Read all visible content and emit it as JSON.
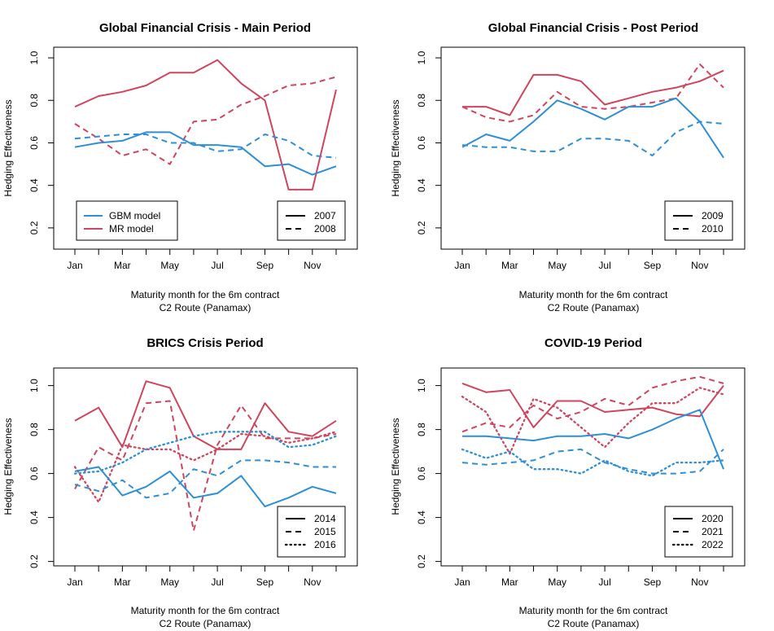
{
  "colors": {
    "gbm": "#2E8FD6",
    "mr": "#D0445E"
  },
  "chart_data": [
    {
      "type": "line",
      "title": "Global Financial Crisis - Main Period",
      "xlabel": "Maturity month for the 6m contract",
      "xlabel2": "C2 Route (Panamax)",
      "ylabel": "Hedging Effectiveness",
      "ylim": [
        0.1,
        1.05
      ],
      "yticks": [
        "0.2",
        "0.4",
        "0.6",
        "0.8",
        "1.0"
      ],
      "xtick_labels": [
        "Jan",
        "Mar",
        "May",
        "Jul",
        "Sep",
        "Nov"
      ],
      "model_legend": {
        "placement": "bottom-left",
        "entries": [
          "GBM model",
          "MR model"
        ]
      },
      "year_legend": [
        "2007",
        "2008"
      ],
      "series": [
        {
          "name": "MR 2007",
          "model": "mr",
          "style": "solid",
          "values": [
            0.77,
            0.82,
            0.84,
            0.87,
            0.93,
            0.93,
            0.99,
            0.88,
            0.8,
            0.38,
            0.38,
            0.85
          ]
        },
        {
          "name": "MR 2008",
          "model": "mr",
          "style": "dashed",
          "values": [
            0.69,
            0.62,
            0.54,
            0.57,
            0.5,
            0.7,
            0.71,
            0.78,
            0.82,
            0.87,
            0.88,
            0.91
          ]
        },
        {
          "name": "GBM 2007",
          "model": "gbm",
          "style": "solid",
          "values": [
            0.58,
            0.6,
            0.61,
            0.65,
            0.65,
            0.59,
            0.59,
            0.58,
            0.49,
            0.5,
            0.45,
            0.49
          ]
        },
        {
          "name": "GBM 2008",
          "model": "gbm",
          "style": "dashed",
          "values": [
            0.62,
            0.63,
            0.64,
            0.64,
            0.6,
            0.6,
            0.56,
            0.57,
            0.64,
            0.61,
            0.54,
            0.53
          ]
        }
      ]
    },
    {
      "type": "line",
      "title": "Global Financial Crisis - Post Period",
      "xlabel": "Maturity month for the 6m contract",
      "xlabel2": "C2 Route (Panamax)",
      "ylabel": "Hedging Effectiveness",
      "ylim": [
        0.1,
        1.05
      ],
      "yticks": [
        "0.2",
        "0.4",
        "0.6",
        "0.8",
        "1.0"
      ],
      "xtick_labels": [
        "Jan",
        "Mar",
        "May",
        "Jul",
        "Sep",
        "Nov"
      ],
      "year_legend": [
        "2009",
        "2010"
      ],
      "series": [
        {
          "name": "MR 2009",
          "model": "mr",
          "style": "solid",
          "values": [
            0.77,
            0.77,
            0.73,
            0.92,
            0.92,
            0.89,
            0.78,
            0.81,
            0.84,
            0.86,
            0.89,
            0.94
          ]
        },
        {
          "name": "MR 2010",
          "model": "mr",
          "style": "dashed",
          "values": [
            0.77,
            0.72,
            0.7,
            0.73,
            0.84,
            0.77,
            0.76,
            0.77,
            0.79,
            0.81,
            0.97,
            0.86
          ]
        },
        {
          "name": "GBM 2009",
          "model": "gbm",
          "style": "solid",
          "values": [
            0.58,
            0.64,
            0.61,
            0.7,
            0.8,
            0.76,
            0.71,
            0.77,
            0.77,
            0.81,
            0.7,
            0.53
          ]
        },
        {
          "name": "GBM 2010",
          "model": "gbm",
          "style": "dashed",
          "values": [
            0.59,
            0.58,
            0.58,
            0.56,
            0.56,
            0.62,
            0.62,
            0.61,
            0.54,
            0.65,
            0.7,
            0.69
          ]
        }
      ]
    },
    {
      "type": "line",
      "title": "BRICS Crisis Period",
      "xlabel": "Maturity month for the 6m contract",
      "xlabel2": "C2 Route (Panamax)",
      "ylabel": "Hedging Effectiveness",
      "ylim": [
        0.18,
        1.08
      ],
      "yticks": [
        "0.2",
        "0.4",
        "0.6",
        "0.8",
        "1.0"
      ],
      "xtick_labels": [
        "Jan",
        "Mar",
        "May",
        "Jul",
        "Sep",
        "Nov"
      ],
      "year_legend": [
        "2014",
        "2015",
        "2016"
      ],
      "series": [
        {
          "name": "MR 2014",
          "model": "mr",
          "style": "solid",
          "values": [
            0.84,
            0.9,
            0.72,
            1.02,
            0.99,
            0.77,
            0.71,
            0.71,
            0.92,
            0.79,
            0.77,
            0.84
          ]
        },
        {
          "name": "MR 2015",
          "model": "mr",
          "style": "dashed",
          "values": [
            0.53,
            0.72,
            0.66,
            0.92,
            0.93,
            0.34,
            0.73,
            0.91,
            0.76,
            0.76,
            0.76,
            0.78
          ]
        },
        {
          "name": "MR 2016",
          "model": "mr",
          "style": "dotted",
          "values": [
            0.63,
            0.47,
            0.73,
            0.71,
            0.71,
            0.66,
            0.71,
            0.78,
            0.77,
            0.74,
            0.76,
            0.79
          ]
        },
        {
          "name": "GBM 2014",
          "model": "gbm",
          "style": "solid",
          "values": [
            0.61,
            0.63,
            0.5,
            0.54,
            0.61,
            0.49,
            0.51,
            0.59,
            0.45,
            0.49,
            0.54,
            0.51
          ]
        },
        {
          "name": "GBM 2015",
          "model": "gbm",
          "style": "dashed",
          "values": [
            0.55,
            0.52,
            0.57,
            0.49,
            0.51,
            0.62,
            0.59,
            0.66,
            0.66,
            0.65,
            0.63,
            0.63
          ]
        },
        {
          "name": "GBM 2016",
          "model": "gbm",
          "style": "dotted",
          "values": [
            0.6,
            0.61,
            0.65,
            0.71,
            0.74,
            0.77,
            0.79,
            0.79,
            0.79,
            0.72,
            0.73,
            0.77
          ]
        }
      ]
    },
    {
      "type": "line",
      "title": "COVID-19 Period",
      "xlabel": "Maturity month for the 6m contract",
      "xlabel2": "C2 Route (Panamax)",
      "ylabel": "Hedging Effectiveness",
      "ylim": [
        0.18,
        1.08
      ],
      "yticks": [
        "0.2",
        "0.4",
        "0.6",
        "0.8",
        "1.0"
      ],
      "xtick_labels": [
        "Jan",
        "Mar",
        "May",
        "Jul",
        "Sep",
        "Nov"
      ],
      "year_legend": [
        "2020",
        "2021",
        "2022"
      ],
      "series": [
        {
          "name": "MR 2020",
          "model": "mr",
          "style": "solid",
          "values": [
            1.01,
            0.97,
            0.98,
            0.81,
            0.93,
            0.93,
            0.88,
            0.89,
            0.9,
            0.87,
            0.86,
            1.0
          ]
        },
        {
          "name": "MR 2021",
          "model": "mr",
          "style": "dashed",
          "values": [
            0.79,
            0.83,
            0.81,
            0.91,
            0.85,
            0.88,
            0.94,
            0.91,
            0.99,
            1.02,
            1.04,
            1.01
          ]
        },
        {
          "name": "MR 2022",
          "model": "mr",
          "style": "dotted",
          "values": [
            0.95,
            0.88,
            0.69,
            0.94,
            0.9,
            0.81,
            0.72,
            0.83,
            0.92,
            0.92,
            0.99,
            0.96
          ]
        },
        {
          "name": "GBM 2020",
          "model": "gbm",
          "style": "solid",
          "values": [
            0.77,
            0.77,
            0.76,
            0.75,
            0.77,
            0.77,
            0.78,
            0.76,
            0.8,
            0.85,
            0.89,
            0.62
          ]
        },
        {
          "name": "GBM 2021",
          "model": "gbm",
          "style": "dashed",
          "values": [
            0.65,
            0.64,
            0.65,
            0.66,
            0.7,
            0.71,
            0.65,
            0.62,
            0.6,
            0.6,
            0.61,
            0.71
          ]
        },
        {
          "name": "GBM 2022",
          "model": "gbm",
          "style": "dotted",
          "values": [
            0.71,
            0.67,
            0.7,
            0.62,
            0.62,
            0.6,
            0.66,
            0.61,
            0.59,
            0.65,
            0.65,
            0.66
          ]
        }
      ]
    }
  ]
}
